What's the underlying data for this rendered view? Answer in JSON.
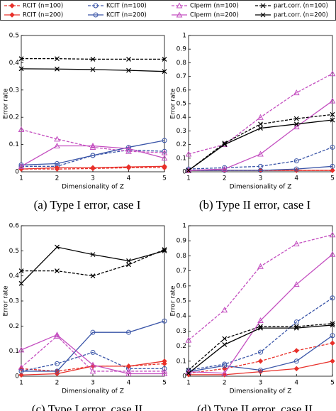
{
  "legend": [
    {
      "name": "RCIT (n=100)",
      "color": "#e8302a",
      "dash": true,
      "marker": "diamond"
    },
    {
      "name": "KCIT (n=100)",
      "color": "#3a55a8",
      "dash": true,
      "marker": "circle"
    },
    {
      "name": "CIperm (n=100)",
      "color": "#c44fc0",
      "dash": true,
      "marker": "triangle"
    },
    {
      "name": "part.corr. (n=100)",
      "color": "#000000",
      "dash": true,
      "marker": "x"
    },
    {
      "name": "RCIT (n=200)",
      "color": "#e8302a",
      "dash": false,
      "marker": "diamond"
    },
    {
      "name": "KCIT (n=200)",
      "color": "#3a55a8",
      "dash": false,
      "marker": "circle"
    },
    {
      "name": "CIperm (n=200)",
      "color": "#c44fc0",
      "dash": false,
      "marker": "triangle"
    },
    {
      "name": "part.corr. (n=200)",
      "color": "#000000",
      "dash": false,
      "marker": "x"
    }
  ],
  "chart_data": [
    {
      "type": "line",
      "caption": "(a) Type I error, case I",
      "xlabel": "Dimensionality of Z",
      "ylabel": "Error rate",
      "x": [
        1,
        2,
        3,
        4,
        5
      ],
      "xlim": [
        1,
        5
      ],
      "xticks": [
        1,
        2,
        3,
        4,
        5
      ],
      "ylim": [
        0,
        0.5
      ],
      "yticks": [
        0,
        0.1,
        0.2,
        0.3,
        0.4,
        0.5
      ],
      "series": [
        {
          "values": [
            0.01,
            0.01,
            0.012,
            0.015,
            0.015
          ]
        },
        {
          "values": [
            0.02,
            0.02,
            0.06,
            0.08,
            0.075
          ]
        },
        {
          "values": [
            0.155,
            0.12,
            0.09,
            0.075,
            0.07
          ]
        },
        {
          "values": [
            0.415,
            0.415,
            0.413,
            0.413,
            0.413
          ]
        },
        {
          "values": [
            0.01,
            0.015,
            0.015,
            0.018,
            0.02
          ]
        },
        {
          "values": [
            0.025,
            0.03,
            0.06,
            0.09,
            0.115
          ]
        },
        {
          "values": [
            0.02,
            0.095,
            0.095,
            0.085,
            0.05
          ]
        },
        {
          "values": [
            0.378,
            0.377,
            0.375,
            0.372,
            0.368
          ]
        }
      ]
    },
    {
      "type": "line",
      "caption": "(b) Type II error, case I",
      "xlabel": "Dimensionality of Z",
      "ylabel": "Error rate",
      "x": [
        1,
        2,
        3,
        4,
        5
      ],
      "xlim": [
        1,
        5
      ],
      "xticks": [
        1,
        2,
        3,
        4,
        5
      ],
      "ylim": [
        0,
        1
      ],
      "yticks": [
        0,
        0.1,
        0.2,
        0.3,
        0.4,
        0.5,
        0.6,
        0.7,
        0.8,
        0.9,
        1
      ],
      "series": [
        {
          "values": [
            0.01,
            0.01,
            0.01,
            0.01,
            0.01
          ]
        },
        {
          "values": [
            0.02,
            0.03,
            0.04,
            0.08,
            0.18
          ]
        },
        {
          "values": [
            0.13,
            0.2,
            0.4,
            0.58,
            0.72
          ]
        },
        {
          "values": [
            0.01,
            0.21,
            0.35,
            0.39,
            0.42
          ]
        },
        {
          "values": [
            0.01,
            0.01,
            0.01,
            0.01,
            0.01
          ]
        },
        {
          "values": [
            0.01,
            0.01,
            0.01,
            0.02,
            0.04
          ]
        },
        {
          "values": [
            0.01,
            0.02,
            0.13,
            0.33,
            0.52
          ]
        },
        {
          "values": [
            0.01,
            0.2,
            0.32,
            0.35,
            0.38
          ]
        }
      ]
    },
    {
      "type": "line",
      "caption": "(c) Type I error, case II",
      "xlabel": "Dimensionality of Z",
      "ylabel": "Error rate",
      "x": [
        1,
        2,
        3,
        4,
        5
      ],
      "xlim": [
        1,
        5
      ],
      "xticks": [
        1,
        2,
        3,
        4,
        5
      ],
      "ylim": [
        0,
        0.6
      ],
      "yticks": [
        0,
        0.1,
        0.2,
        0.3,
        0.4,
        0.5,
        0.6
      ],
      "series": [
        {
          "values": [
            0.03,
            0.02,
            0.04,
            0.04,
            0.05
          ]
        },
        {
          "values": [
            0.02,
            0.05,
            0.095,
            0.03,
            0.03
          ]
        },
        {
          "values": [
            0.035,
            0.16,
            0.02,
            0.02,
            0.02
          ]
        },
        {
          "values": [
            0.42,
            0.42,
            0.4,
            0.445,
            0.505
          ]
        },
        {
          "values": [
            0.005,
            0.01,
            0.04,
            0.04,
            0.06
          ]
        },
        {
          "values": [
            0.02,
            0.02,
            0.175,
            0.175,
            0.22
          ]
        },
        {
          "values": [
            0.105,
            0.165,
            0.045,
            0.01,
            0.01
          ]
        },
        {
          "values": [
            0.37,
            0.515,
            0.485,
            0.46,
            0.5
          ]
        }
      ]
    },
    {
      "type": "line",
      "caption": "(d) Type II error, case II",
      "xlabel": "Dimensionality of Z",
      "ylabel": "Error rate",
      "x": [
        1,
        2,
        3,
        4,
        5
      ],
      "xlim": [
        1,
        5
      ],
      "xticks": [
        1,
        2,
        3,
        4,
        5
      ],
      "ylim": [
        0,
        1
      ],
      "yticks": [
        0,
        0.1,
        0.2,
        0.3,
        0.4,
        0.5,
        0.6,
        0.7,
        0.8,
        0.9,
        1
      ],
      "series": [
        {
          "values": [
            0.02,
            0.05,
            0.1,
            0.17,
            0.22
          ]
        },
        {
          "values": [
            0.04,
            0.08,
            0.16,
            0.36,
            0.52
          ]
        },
        {
          "values": [
            0.24,
            0.44,
            0.73,
            0.88,
            0.94
          ]
        },
        {
          "values": [
            0.04,
            0.25,
            0.33,
            0.33,
            0.35
          ]
        },
        {
          "values": [
            0.01,
            0.01,
            0.03,
            0.05,
            0.1
          ]
        },
        {
          "values": [
            0.03,
            0.07,
            0.04,
            0.1,
            0.27
          ]
        },
        {
          "values": [
            0.03,
            0.02,
            0.37,
            0.61,
            0.81
          ]
        },
        {
          "values": [
            0.02,
            0.21,
            0.32,
            0.32,
            0.34
          ]
        }
      ]
    }
  ]
}
